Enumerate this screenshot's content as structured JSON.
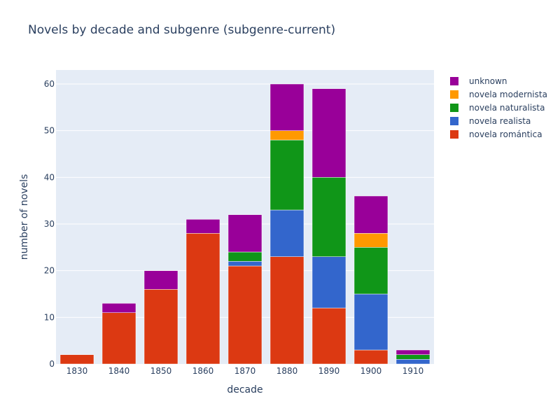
{
  "chart_data": {
    "type": "bar",
    "barmode": "stack",
    "title": "Novels by decade and subgenre (subgenre-current)",
    "xlabel": "decade",
    "ylabel": "number of novels",
    "categories": [
      "1830",
      "1840",
      "1850",
      "1860",
      "1870",
      "1880",
      "1890",
      "1900",
      "1910"
    ],
    "ylim": [
      0,
      63
    ],
    "yticks": [
      0,
      10,
      20,
      30,
      40,
      50,
      60
    ],
    "grid": true,
    "legend_position": "top-right",
    "series": [
      {
        "name": "novela romántica",
        "color": "#dc3912",
        "values": [
          2,
          11,
          16,
          28,
          21,
          23,
          12,
          3,
          0
        ]
      },
      {
        "name": "novela realista",
        "color": "#3366cc",
        "values": [
          0,
          0,
          0,
          0,
          1,
          10,
          11,
          12,
          1
        ]
      },
      {
        "name": "novela naturalista",
        "color": "#109618",
        "values": [
          0,
          0,
          0,
          0,
          2,
          15,
          17,
          10,
          1
        ]
      },
      {
        "name": "novela modernista",
        "color": "#ff9900",
        "values": [
          0,
          0,
          0,
          0,
          0,
          2,
          0,
          3,
          0
        ]
      },
      {
        "name": "unknown",
        "color": "#990099",
        "values": [
          0,
          2,
          4,
          3,
          8,
          10,
          19,
          8,
          1
        ]
      }
    ]
  }
}
